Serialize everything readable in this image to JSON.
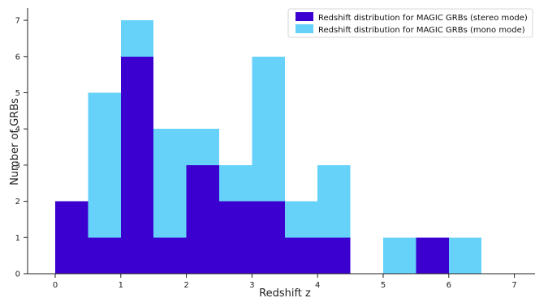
{
  "chart_data": {
    "type": "bar",
    "title": "",
    "xlabel": "Redshift z",
    "ylabel": "Number of GRBs",
    "xlim": [
      -0.45,
      7.3
    ],
    "ylim": [
      0,
      7.3
    ],
    "xticks": [
      "0",
      "1",
      "2",
      "3",
      "4",
      "5",
      "6",
      "7"
    ],
    "yticks": [
      "0",
      "1",
      "2",
      "3",
      "4",
      "5",
      "6",
      "7"
    ],
    "bin_width": 0.5,
    "bin_starts": [
      0,
      0.5,
      1,
      1.5,
      2,
      2.5,
      3,
      3.5,
      4,
      4.5,
      5,
      5.5,
      6,
      6.5
    ],
    "series": [
      {
        "name": "Redshift distribution for MAGIC GRBs (mono mode)",
        "color": "#66d2fa",
        "values": [
          2,
          5,
          7,
          4,
          4,
          3,
          6,
          2,
          3,
          0,
          1,
          1,
          1,
          0
        ]
      },
      {
        "name": "Redshift distribution for MAGIC GRBs (stereo mode)",
        "color": "#3b00cf",
        "values": [
          2,
          1,
          6,
          1,
          3,
          2,
          2,
          1,
          1,
          0,
          0,
          1,
          0,
          0
        ]
      }
    ],
    "legend": {
      "position": "top-right",
      "order": [
        1,
        0
      ]
    },
    "grid": false
  }
}
